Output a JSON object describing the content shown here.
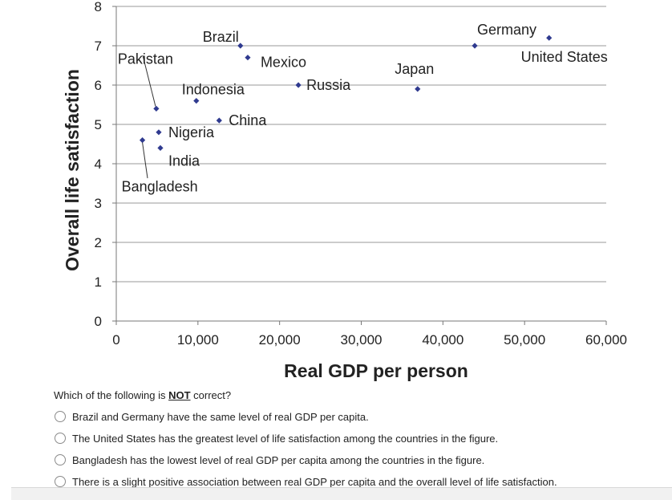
{
  "chart_data": {
    "type": "scatter",
    "xlabel": "Real GDP per person",
    "ylabel": "Overall life satisfaction",
    "xlim": [
      0,
      60000
    ],
    "ylim": [
      0,
      8
    ],
    "x_ticks": [
      0,
      10000,
      20000,
      30000,
      40000,
      50000,
      60000
    ],
    "x_tick_labels": [
      "0",
      "10,000",
      "20,000",
      "30,000",
      "40,000",
      "50,000",
      "60,000"
    ],
    "y_ticks": [
      0,
      1,
      2,
      3,
      4,
      5,
      6,
      7,
      8
    ],
    "y_tick_labels": [
      "0",
      "1",
      "2",
      "3",
      "4",
      "5",
      "6",
      "7",
      "8"
    ],
    "grid": "horizontal",
    "marker_color": "#2f3a8f",
    "points": [
      {
        "label": "Bangladesh",
        "x": 3200,
        "y": 4.6
      },
      {
        "label": "Pakistan",
        "x": 4900,
        "y": 5.4
      },
      {
        "label": "Nigeria",
        "x": 5200,
        "y": 4.8
      },
      {
        "label": "India",
        "x": 5400,
        "y": 4.4
      },
      {
        "label": "Indonesia",
        "x": 9800,
        "y": 5.6
      },
      {
        "label": "China",
        "x": 12600,
        "y": 5.1
      },
      {
        "label": "Brazil",
        "x": 15200,
        "y": 7.0
      },
      {
        "label": "Mexico",
        "x": 16100,
        "y": 6.7
      },
      {
        "label": "Russia",
        "x": 22300,
        "y": 6.0
      },
      {
        "label": "Japan",
        "x": 36900,
        "y": 5.9
      },
      {
        "label": "Germany",
        "x": 43900,
        "y": 7.0
      },
      {
        "label": "United States",
        "x": 53000,
        "y": 7.2
      }
    ]
  },
  "question": {
    "prefix": "Which of the following is ",
    "emphasis": "NOT",
    "suffix": " correct?"
  },
  "options": [
    "Brazil and Germany have the same level of real GDP per capita.",
    "The United States has the greatest level of life satisfaction among the countries in the figure.",
    "Bangladesh has the lowest level of real GDP per capita among the countries in the figure.",
    "There is a slight positive association between real GDP per capita and the overall level of life satisfaction."
  ]
}
